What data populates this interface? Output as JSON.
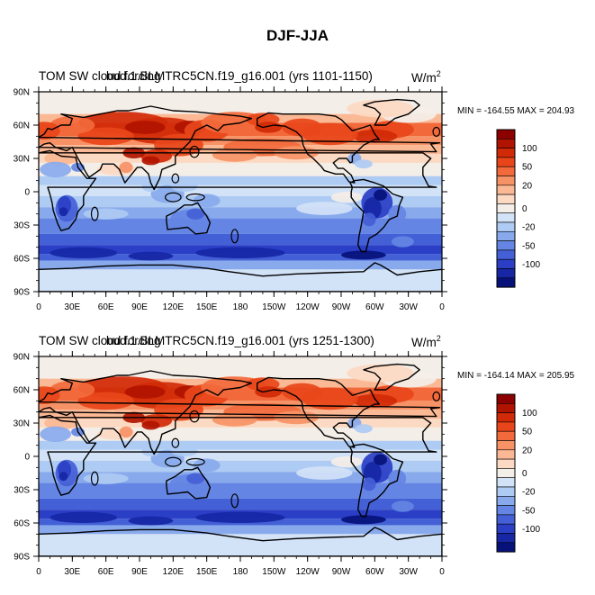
{
  "figure": {
    "title": "DJF-JJA"
  },
  "chart_data": [
    {
      "type": "heatmap",
      "title_left": "TOM SW cloud forcing",
      "title_left_overlap": "bud.1.BLMTRC5CN.f19_g16.001 (yrs 1101-1150)",
      "units": "W/m",
      "units_exponent": "2",
      "stats": "MIN = -164.55 MAX = 204.93",
      "x_ticks": [
        "0",
        "30E",
        "60E",
        "90E",
        "120E",
        "150E",
        "180",
        "150W",
        "120W",
        "90W",
        "60W",
        "30W",
        "0"
      ],
      "y_ticks": [
        "90N",
        "60N",
        "30N",
        "0",
        "30S",
        "60S",
        "90S"
      ],
      "colorbar_labels": [
        "100",
        "50",
        "20",
        "0",
        "-20",
        "-50",
        "-100"
      ],
      "min": -164.55,
      "max": 204.93
    },
    {
      "type": "heatmap",
      "title_left": "TOM SW cloud forcing",
      "title_left_overlap": "bud.1.BLMTRC5CN.f19_g16.001 (yrs 1251-1300)",
      "units": "W/m",
      "units_exponent": "2",
      "stats": "MIN = -164.14 MAX = 205.95",
      "x_ticks": [
        "0",
        "30E",
        "60E",
        "90E",
        "120E",
        "150E",
        "180",
        "150W",
        "120W",
        "90W",
        "60W",
        "30W",
        "0"
      ],
      "y_ticks": [
        "90N",
        "60N",
        "30N",
        "0",
        "30S",
        "60S",
        "90S"
      ],
      "colorbar_labels": [
        "100",
        "50",
        "20",
        "0",
        "-20",
        "-50",
        "-100"
      ],
      "min": -164.14,
      "max": 205.95
    }
  ],
  "colors": {
    "levels": [
      "#8c0000",
      "#b01300",
      "#d12a08",
      "#e8461a",
      "#f26a3c",
      "#f79266",
      "#fbb894",
      "#fcd9c2",
      "#f4eee8",
      "#d2e2f7",
      "#aecbf3",
      "#88aaed",
      "#6485e3",
      "#4460d6",
      "#2a3fc6",
      "#1626a5",
      "#07117a"
    ]
  }
}
